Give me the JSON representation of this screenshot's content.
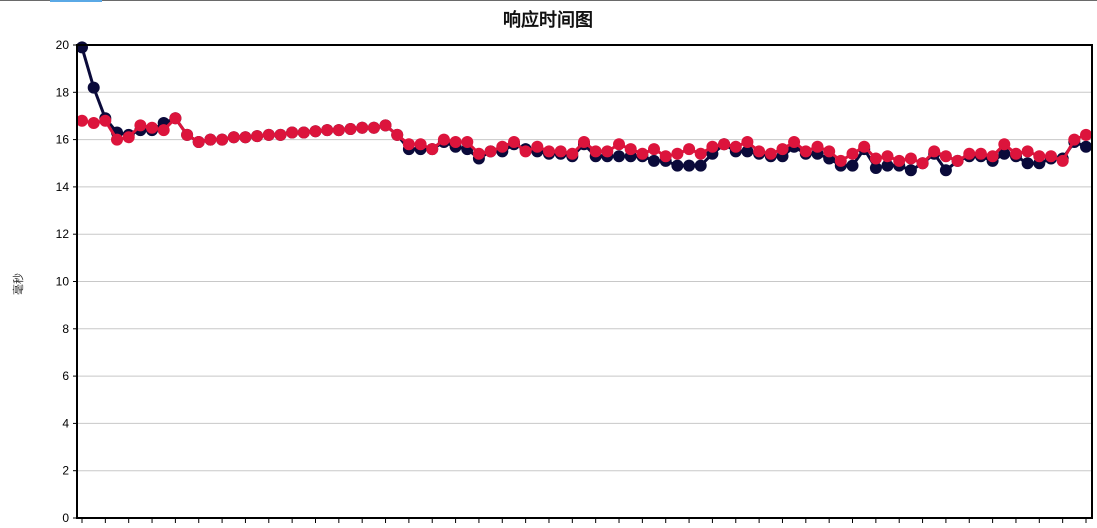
{
  "chart_data": {
    "type": "line",
    "title": "响应时间图",
    "xlabel": "",
    "ylabel": "毫秒",
    "ylim": [
      0,
      20
    ],
    "yticks": [
      0,
      2,
      4,
      6,
      8,
      10,
      12,
      14,
      16,
      18,
      20
    ],
    "grid": true,
    "series": [
      {
        "color": "#0a0a3a",
        "values": [
          19.9,
          18.2,
          16.9,
          16.3,
          16.2,
          16.4,
          16.4,
          16.7,
          16.9,
          16.2,
          15.9,
          16.0,
          16.0,
          16.1,
          16.1,
          16.15,
          16.2,
          16.2,
          16.3,
          16.3,
          16.35,
          16.4,
          16.4,
          16.45,
          16.5,
          16.5,
          16.6,
          16.2,
          15.6,
          15.6,
          15.6,
          15.9,
          15.7,
          15.6,
          15.2,
          15.5,
          15.5,
          15.8,
          15.6,
          15.5,
          15.4,
          15.4,
          15.3,
          15.8,
          15.3,
          15.3,
          15.3,
          15.3,
          15.3,
          15.1,
          15.1,
          14.9,
          14.9,
          14.9,
          15.4,
          15.8,
          15.5,
          15.5,
          15.4,
          15.3,
          15.3,
          15.7,
          15.4,
          15.4,
          15.2,
          14.9,
          14.9,
          15.6,
          14.8,
          14.9,
          14.9,
          14.7,
          15.0,
          15.4,
          14.7,
          15.1,
          15.3,
          15.3,
          15.1,
          15.4,
          15.3,
          15.0,
          15.0,
          15.2,
          15.2,
          15.9,
          15.7
        ]
      },
      {
        "color": "#dc143c",
        "values": [
          16.8,
          16.7,
          16.8,
          16.0,
          16.1,
          16.6,
          16.5,
          16.4,
          16.9,
          16.2,
          15.9,
          16.0,
          16.0,
          16.1,
          16.1,
          16.15,
          16.2,
          16.2,
          16.3,
          16.3,
          16.35,
          16.4,
          16.4,
          16.45,
          16.5,
          16.5,
          16.6,
          16.2,
          15.8,
          15.8,
          15.6,
          16.0,
          15.9,
          15.9,
          15.4,
          15.5,
          15.7,
          15.9,
          15.5,
          15.7,
          15.5,
          15.5,
          15.4,
          15.9,
          15.5,
          15.5,
          15.8,
          15.6,
          15.4,
          15.6,
          15.3,
          15.4,
          15.6,
          15.4,
          15.7,
          15.8,
          15.7,
          15.9,
          15.5,
          15.4,
          15.6,
          15.9,
          15.5,
          15.7,
          15.5,
          15.1,
          15.4,
          15.7,
          15.2,
          15.3,
          15.1,
          15.2,
          15.0,
          15.5,
          15.3,
          15.1,
          15.4,
          15.4,
          15.3,
          15.8,
          15.4,
          15.5,
          15.3,
          15.3,
          15.1,
          16.0,
          16.2
        ]
      }
    ]
  }
}
